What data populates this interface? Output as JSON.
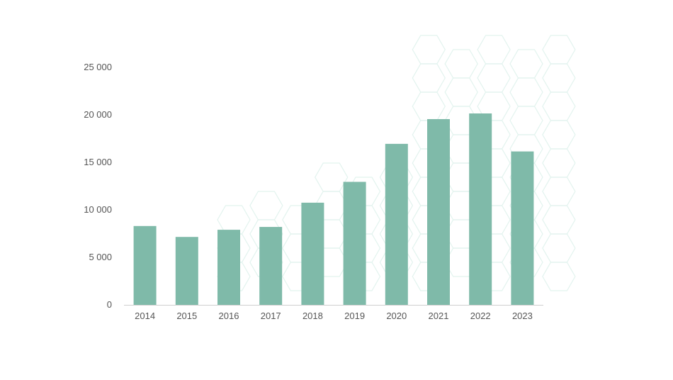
{
  "chart_data": {
    "type": "bar",
    "title": "",
    "xlabel": "",
    "ylabel": "",
    "categories": [
      "2014",
      "2015",
      "2016",
      "2017",
      "2018",
      "2019",
      "2020",
      "2021",
      "2022",
      "2023"
    ],
    "values": [
      8300,
      7150,
      7900,
      8200,
      10750,
      12950,
      16950,
      19550,
      20150,
      16150
    ],
    "ylim": [
      0,
      25000
    ],
    "yticks": [
      0,
      5000,
      10000,
      15000,
      20000,
      25000
    ],
    "ytick_labels": [
      "0",
      "5 000",
      "10 000",
      "15 000",
      "20 000",
      "25 000"
    ],
    "grid": false,
    "legend": "none",
    "colors": {
      "bar": "#7fbaa9",
      "axis": "#cfcfcf",
      "pattern": "#e2f3ee"
    }
  }
}
